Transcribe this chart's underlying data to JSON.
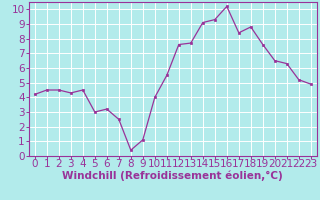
{
  "x": [
    0,
    1,
    2,
    3,
    4,
    5,
    6,
    7,
    8,
    9,
    10,
    11,
    12,
    13,
    14,
    15,
    16,
    17,
    18,
    19,
    20,
    21,
    22,
    23
  ],
  "y": [
    4.2,
    4.5,
    4.5,
    4.3,
    4.5,
    3.0,
    3.2,
    2.5,
    0.4,
    1.1,
    4.0,
    5.5,
    7.6,
    7.7,
    9.1,
    9.3,
    10.2,
    8.4,
    8.8,
    7.6,
    6.5,
    6.3,
    5.2,
    4.9
  ],
  "line_color": "#993399",
  "marker_color": "#993399",
  "bg_color": "#b2ebeb",
  "grid_color": "#ffffff",
  "xlabel": "Windchill (Refroidissement éolien,°C)",
  "ylabel": "",
  "xlim": [
    -0.5,
    23.5
  ],
  "ylim": [
    0,
    10.5
  ],
  "xticks": [
    0,
    1,
    2,
    3,
    4,
    5,
    6,
    7,
    8,
    9,
    10,
    11,
    12,
    13,
    14,
    15,
    16,
    17,
    18,
    19,
    20,
    21,
    22,
    23
  ],
  "yticks": [
    0,
    1,
    2,
    3,
    4,
    5,
    6,
    7,
    8,
    9,
    10
  ],
  "xlabel_fontsize": 7.5,
  "tick_fontsize": 7.5,
  "purple": "#993399"
}
